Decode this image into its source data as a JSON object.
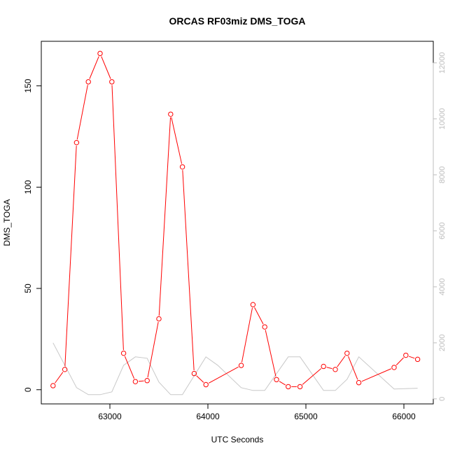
{
  "chart_data": {
    "type": "line",
    "title": "ORCAS RF03miz DMS_TOGA",
    "xlabel": "UTC Seconds",
    "ylabel": "DMS_TOGA",
    "xlim": [
      62300,
      66300
    ],
    "ylim": [
      -7,
      172
    ],
    "y2lim": [
      -180,
      12770
    ],
    "x_ticks": [
      63000,
      64000,
      65000,
      66000
    ],
    "y_ticks": [
      0,
      50,
      100,
      150
    ],
    "y2_ticks": [
      0,
      2000,
      4000,
      6000,
      8000,
      10000,
      12000
    ],
    "grid": false,
    "series": [
      {
        "axis": "left",
        "color": "#ff0000",
        "marker": "open-circle",
        "x": [
          62420,
          62540,
          62660,
          62780,
          62900,
          63020,
          63140,
          63260,
          63380,
          63500,
          63620,
          63740,
          63860,
          63980,
          64340,
          64460,
          64580,
          64700,
          64820,
          64940,
          65180,
          65300,
          65420,
          65540,
          65900,
          66020,
          66140
        ],
        "y": [
          2,
          10,
          122,
          152,
          166,
          152,
          18,
          4,
          4.5,
          35,
          136,
          110,
          8,
          2.5,
          12,
          42,
          31,
          5,
          1.5,
          1.5,
          11.5,
          10,
          18,
          3.5,
          11,
          17,
          15
        ]
      },
      {
        "axis": "right",
        "color": "#c8c8c8",
        "marker": "none",
        "x": [
          62420,
          62540,
          62660,
          62780,
          62900,
          63020,
          63140,
          63260,
          63380,
          63500,
          63620,
          63740,
          63980,
          64100,
          64340,
          64460,
          64580,
          64820,
          64940,
          65180,
          65300,
          65420,
          65540,
          65900,
          66140
        ],
        "y": [
          2000,
          1200,
          400,
          150,
          150,
          250,
          1200,
          1500,
          1450,
          600,
          150,
          150,
          1500,
          1200,
          400,
          300,
          300,
          1500,
          1500,
          300,
          300,
          700,
          1500,
          350,
          380
        ]
      }
    ]
  }
}
